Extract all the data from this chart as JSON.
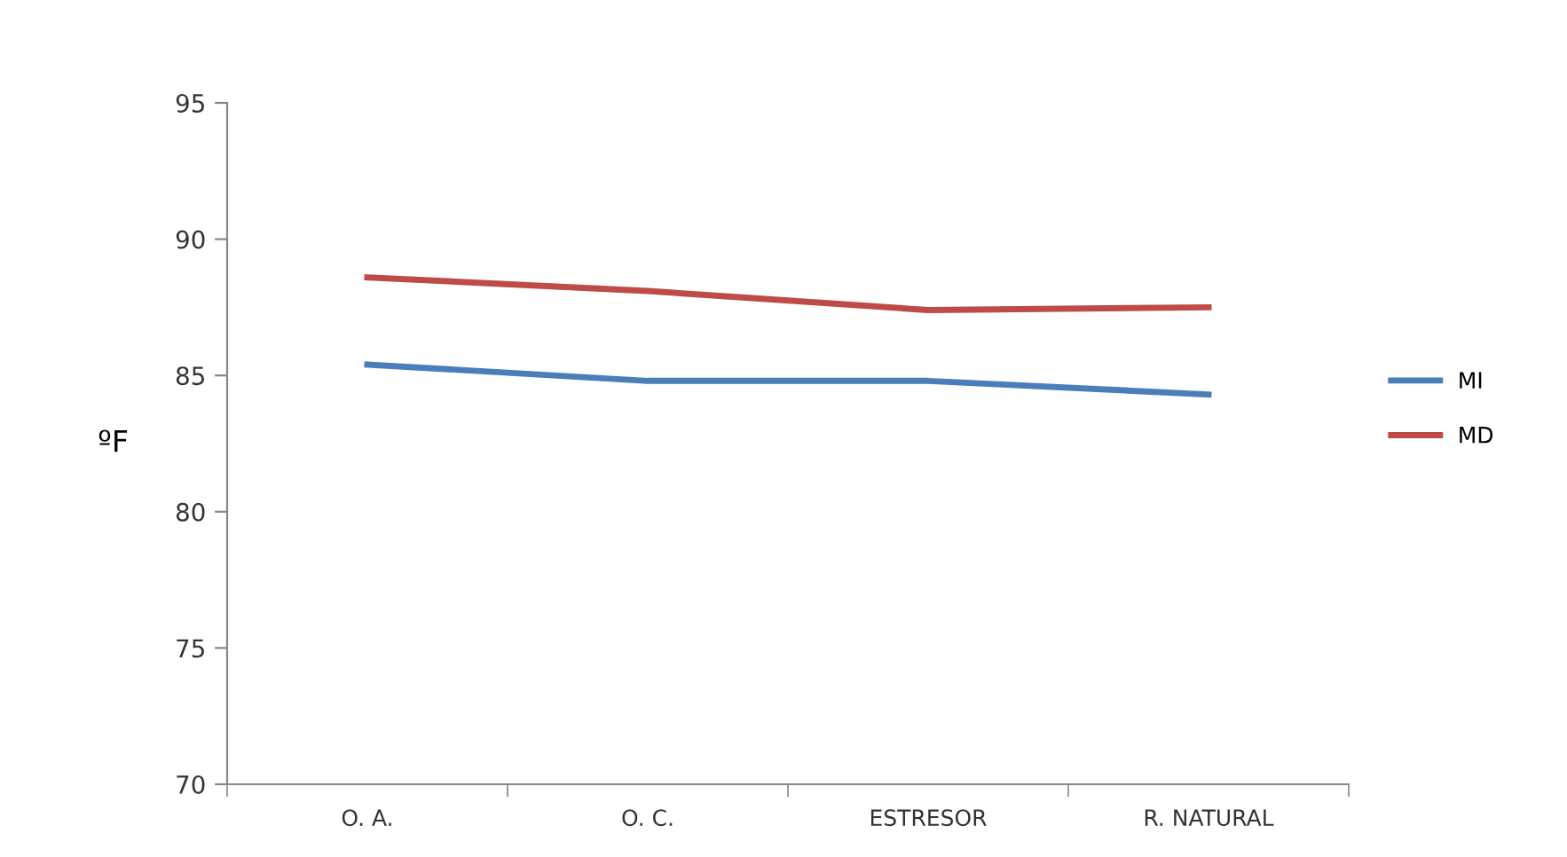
{
  "chart_data": {
    "type": "line",
    "ylabel": "ºF",
    "categories": [
      "O. A.",
      "O. C.",
      "ESTRESOR",
      "R. NATURAL"
    ],
    "series": [
      {
        "name": "MI",
        "color": "#4a7ebb",
        "values": [
          85.4,
          84.8,
          84.8,
          84.3
        ]
      },
      {
        "name": "MD",
        "color": "#be4b48",
        "values": [
          88.6,
          88.1,
          87.4,
          87.5
        ]
      }
    ],
    "ylim": [
      70,
      95
    ],
    "yticks": [
      70,
      75,
      80,
      85,
      90,
      95
    ],
    "grid": false,
    "legend": "right",
    "marker": "none",
    "line_style": "solid"
  }
}
